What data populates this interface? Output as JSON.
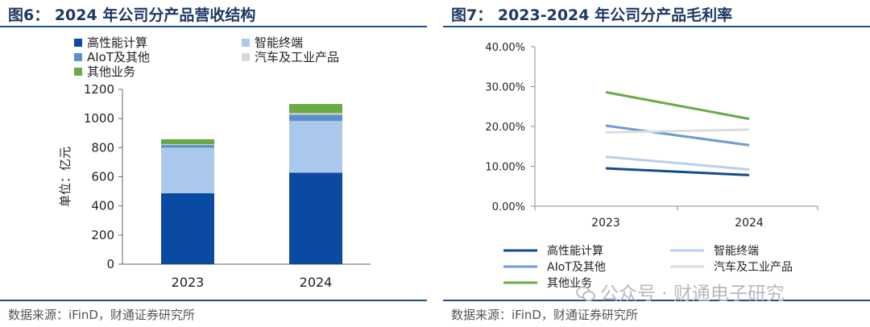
{
  "left": {
    "title": "图6： 2024 年公司分产品营收结构",
    "source": "数据来源：iFinD，财通证券研究所"
  },
  "right": {
    "title": "图7： 2023-2024 年公司分产品毛利率",
    "source": "数据来源：iFinD，财通证券研究所"
  },
  "watermark": "公众号 · 财通电子研究",
  "chart_data": [
    {
      "type": "bar",
      "stacked": true,
      "title": "2024 年公司分产品营收结构",
      "ylabel": "单位：亿元",
      "xlabel": "",
      "categories": [
        "2023",
        "2024"
      ],
      "ylim": [
        0,
        1200
      ],
      "yticks": [
        0,
        200,
        400,
        600,
        800,
        1000,
        1200
      ],
      "legend_position": "top",
      "series": [
        {
          "name": "高性能计算",
          "color": "#0b4aa2",
          "values": [
            487,
            628
          ]
        },
        {
          "name": "智能终端",
          "color": "#a9c8ec",
          "values": [
            313,
            355
          ]
        },
        {
          "name": "AIoT及其他",
          "color": "#5b8fcb",
          "values": [
            18,
            43
          ]
        },
        {
          "name": "汽车及工业产品",
          "color": "#d9d9d9",
          "values": [
            5,
            11
          ]
        },
        {
          "name": "其他业务",
          "color": "#6aaa45",
          "values": [
            35,
            63
          ]
        }
      ],
      "legend_order": [
        "高性能计算",
        "智能终端",
        "AIoT及其他",
        "汽车及工业产品",
        "其他业务"
      ]
    },
    {
      "type": "line",
      "title": "2023-2024 年公司分产品毛利率",
      "x": [
        "2023",
        "2024"
      ],
      "ylim": [
        0,
        40
      ],
      "yticks": [
        "0.00%",
        "10.00%",
        "20.00%",
        "30.00%",
        "40.00%"
      ],
      "ytick_values": [
        0,
        10,
        20,
        30,
        40
      ],
      "legend_position": "bottom",
      "series": [
        {
          "name": "高性能计算",
          "color": "#134c8a",
          "values": [
            9.5,
            7.8
          ]
        },
        {
          "name": "智能终端",
          "color": "#b7d0ea",
          "values": [
            12.4,
            9.2
          ]
        },
        {
          "name": "AIoT及其他",
          "color": "#6f9bd0",
          "values": [
            20.2,
            15.3
          ]
        },
        {
          "name": "汽车及工业产品",
          "color": "#dddddd",
          "values": [
            18.5,
            19.2
          ]
        },
        {
          "name": "其他业务",
          "color": "#6aaa45",
          "values": [
            28.6,
            21.9
          ]
        }
      ]
    }
  ]
}
